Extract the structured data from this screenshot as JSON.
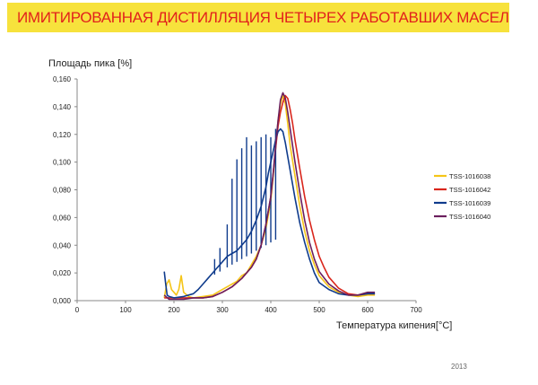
{
  "header": {
    "title": "ИМИТИРОВАННАЯ ДИСТИЛЛЯЦИЯ  ЧЕТЫРЕХ РАБОТАВШИХ МАСЕЛ"
  },
  "footer": {
    "year": "2013"
  },
  "chart_data": {
    "type": "line",
    "ylabel": "Площадь пика [%]",
    "xlabel": "Температура кипения[°C]",
    "xlim": [
      0,
      700
    ],
    "ylim": [
      0,
      0.16
    ],
    "x_ticks": [
      "0",
      "100",
      "200",
      "300",
      "400",
      "500",
      "600",
      "700"
    ],
    "y_ticks": [
      "0,000",
      "0,020",
      "0,040",
      "0,060",
      "0,080",
      "0,100",
      "0,120",
      "0,140",
      "0,160"
    ],
    "grid": false,
    "legend_position": "right",
    "series": [
      {
        "name": "TSS-1016038",
        "color": "#f5c518",
        "points": [
          [
            180,
            0.002
          ],
          [
            185,
            0.012
          ],
          [
            190,
            0.015
          ],
          [
            195,
            0.008
          ],
          [
            200,
            0.006
          ],
          [
            205,
            0.004
          ],
          [
            210,
            0.008
          ],
          [
            215,
            0.018
          ],
          [
            220,
            0.006
          ],
          [
            230,
            0.003
          ],
          [
            240,
            0.002
          ],
          [
            260,
            0.003
          ],
          [
            280,
            0.004
          ],
          [
            290,
            0.006
          ],
          [
            300,
            0.008
          ],
          [
            310,
            0.01
          ],
          [
            320,
            0.012
          ],
          [
            330,
            0.014
          ],
          [
            340,
            0.018
          ],
          [
            350,
            0.02
          ],
          [
            360,
            0.026
          ],
          [
            370,
            0.032
          ],
          [
            380,
            0.04
          ],
          [
            390,
            0.052
          ],
          [
            400,
            0.072
          ],
          [
            405,
            0.09
          ],
          [
            410,
            0.11
          ],
          [
            415,
            0.13
          ],
          [
            420,
            0.142
          ],
          [
            425,
            0.148
          ],
          [
            430,
            0.142
          ],
          [
            435,
            0.128
          ],
          [
            440,
            0.112
          ],
          [
            450,
            0.09
          ],
          [
            460,
            0.068
          ],
          [
            470,
            0.05
          ],
          [
            480,
            0.036
          ],
          [
            490,
            0.026
          ],
          [
            500,
            0.018
          ],
          [
            520,
            0.01
          ],
          [
            540,
            0.006
          ],
          [
            560,
            0.004
          ],
          [
            580,
            0.003
          ],
          [
            600,
            0.004
          ],
          [
            615,
            0.004
          ]
        ]
      },
      {
        "name": "TSS-1016042",
        "color": "#d9261c",
        "points": [
          [
            180,
            0.002
          ],
          [
            200,
            0.002
          ],
          [
            220,
            0.002
          ],
          [
            240,
            0.002
          ],
          [
            260,
            0.002
          ],
          [
            280,
            0.003
          ],
          [
            300,
            0.006
          ],
          [
            320,
            0.01
          ],
          [
            340,
            0.016
          ],
          [
            360,
            0.024
          ],
          [
            370,
            0.03
          ],
          [
            380,
            0.04
          ],
          [
            390,
            0.055
          ],
          [
            400,
            0.075
          ],
          [
            405,
            0.092
          ],
          [
            410,
            0.11
          ],
          [
            415,
            0.126
          ],
          [
            420,
            0.136
          ],
          [
            425,
            0.143
          ],
          [
            430,
            0.148
          ],
          [
            435,
            0.146
          ],
          [
            440,
            0.138
          ],
          [
            445,
            0.128
          ],
          [
            450,
            0.116
          ],
          [
            460,
            0.095
          ],
          [
            470,
            0.075
          ],
          [
            480,
            0.058
          ],
          [
            490,
            0.044
          ],
          [
            500,
            0.032
          ],
          [
            510,
            0.024
          ],
          [
            520,
            0.017
          ],
          [
            540,
            0.009
          ],
          [
            560,
            0.005
          ],
          [
            580,
            0.004
          ],
          [
            600,
            0.005
          ],
          [
            615,
            0.005
          ]
        ]
      },
      {
        "name": "TSS-1016039",
        "color": "#0f3b8c",
        "points": [
          [
            180,
            0.021
          ],
          [
            183,
            0.012
          ],
          [
            186,
            0.004
          ],
          [
            190,
            0.003
          ],
          [
            200,
            0.002
          ],
          [
            220,
            0.003
          ],
          [
            240,
            0.005
          ],
          [
            250,
            0.008
          ],
          [
            260,
            0.012
          ],
          [
            270,
            0.016
          ],
          [
            280,
            0.02
          ],
          [
            290,
            0.024
          ],
          [
            300,
            0.028
          ],
          [
            310,
            0.032
          ],
          [
            320,
            0.034
          ],
          [
            330,
            0.036
          ],
          [
            340,
            0.04
          ],
          [
            350,
            0.044
          ],
          [
            360,
            0.05
          ],
          [
            370,
            0.058
          ],
          [
            380,
            0.068
          ],
          [
            390,
            0.082
          ],
          [
            395,
            0.092
          ],
          [
            400,
            0.1
          ],
          [
            405,
            0.108
          ],
          [
            410,
            0.116
          ],
          [
            415,
            0.122
          ],
          [
            420,
            0.124
          ],
          [
            425,
            0.122
          ],
          [
            430,
            0.114
          ],
          [
            435,
            0.104
          ],
          [
            440,
            0.094
          ],
          [
            450,
            0.074
          ],
          [
            460,
            0.056
          ],
          [
            470,
            0.042
          ],
          [
            480,
            0.03
          ],
          [
            490,
            0.02
          ],
          [
            500,
            0.013
          ],
          [
            520,
            0.008
          ],
          [
            540,
            0.005
          ],
          [
            560,
            0.004
          ],
          [
            580,
            0.004
          ],
          [
            600,
            0.005
          ],
          [
            615,
            0.005
          ]
        ],
        "spikes": [
          [
            284,
            0.03
          ],
          [
            295,
            0.038
          ],
          [
            310,
            0.055
          ],
          [
            320,
            0.088
          ],
          [
            330,
            0.102
          ],
          [
            340,
            0.11
          ],
          [
            350,
            0.118
          ],
          [
            360,
            0.112
          ],
          [
            370,
            0.115
          ],
          [
            380,
            0.118
          ],
          [
            390,
            0.12
          ],
          [
            400,
            0.118
          ],
          [
            410,
            0.124
          ]
        ]
      },
      {
        "name": "TSS-1016040",
        "color": "#6b1f5e",
        "points": [
          [
            180,
            0.004
          ],
          [
            190,
            0.001
          ],
          [
            200,
            0.001
          ],
          [
            220,
            0.001
          ],
          [
            240,
            0.002
          ],
          [
            260,
            0.002
          ],
          [
            280,
            0.003
          ],
          [
            300,
            0.006
          ],
          [
            320,
            0.01
          ],
          [
            340,
            0.016
          ],
          [
            360,
            0.024
          ],
          [
            370,
            0.03
          ],
          [
            380,
            0.04
          ],
          [
            390,
            0.055
          ],
          [
            400,
            0.075
          ],
          [
            405,
            0.092
          ],
          [
            410,
            0.112
          ],
          [
            415,
            0.13
          ],
          [
            420,
            0.145
          ],
          [
            425,
            0.15
          ],
          [
            430,
            0.146
          ],
          [
            435,
            0.136
          ],
          [
            440,
            0.124
          ],
          [
            450,
            0.1
          ],
          [
            460,
            0.078
          ],
          [
            470,
            0.058
          ],
          [
            480,
            0.042
          ],
          [
            490,
            0.03
          ],
          [
            500,
            0.021
          ],
          [
            520,
            0.012
          ],
          [
            540,
            0.007
          ],
          [
            560,
            0.004
          ],
          [
            580,
            0.004
          ],
          [
            600,
            0.006
          ],
          [
            615,
            0.006
          ]
        ]
      }
    ]
  }
}
